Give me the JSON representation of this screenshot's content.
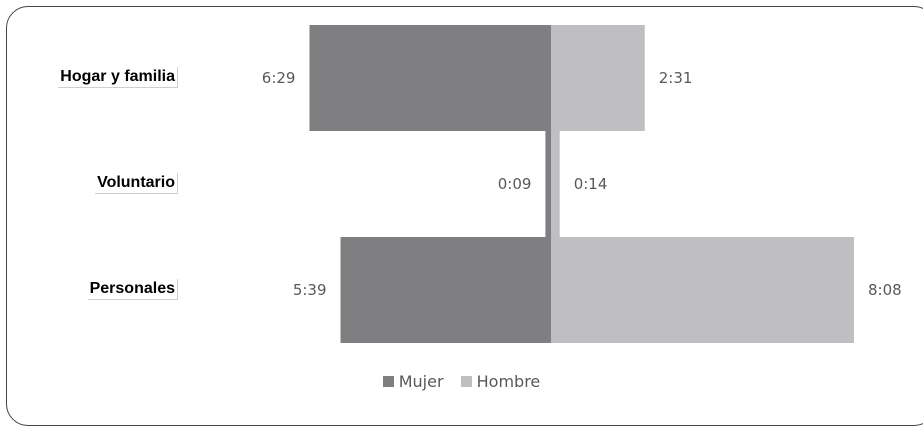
{
  "chart_data": {
    "type": "bar",
    "orientation": "horizontal-diverging",
    "categories": [
      "Hogar y familia",
      "Voluntario",
      "Personales"
    ],
    "series": [
      {
        "name": "Mujer",
        "values": [
          "6:29",
          "0:09",
          "5:39"
        ],
        "minutes": [
          389,
          9,
          339
        ],
        "color": "#7f7f81"
      },
      {
        "name": "Hombre",
        "values": [
          "2:31",
          "0:14",
          "8:08"
        ],
        "minutes": [
          151,
          14,
          488
        ],
        "color": "#bfbfc1"
      }
    ],
    "legend": "bottom",
    "grid": false
  }
}
